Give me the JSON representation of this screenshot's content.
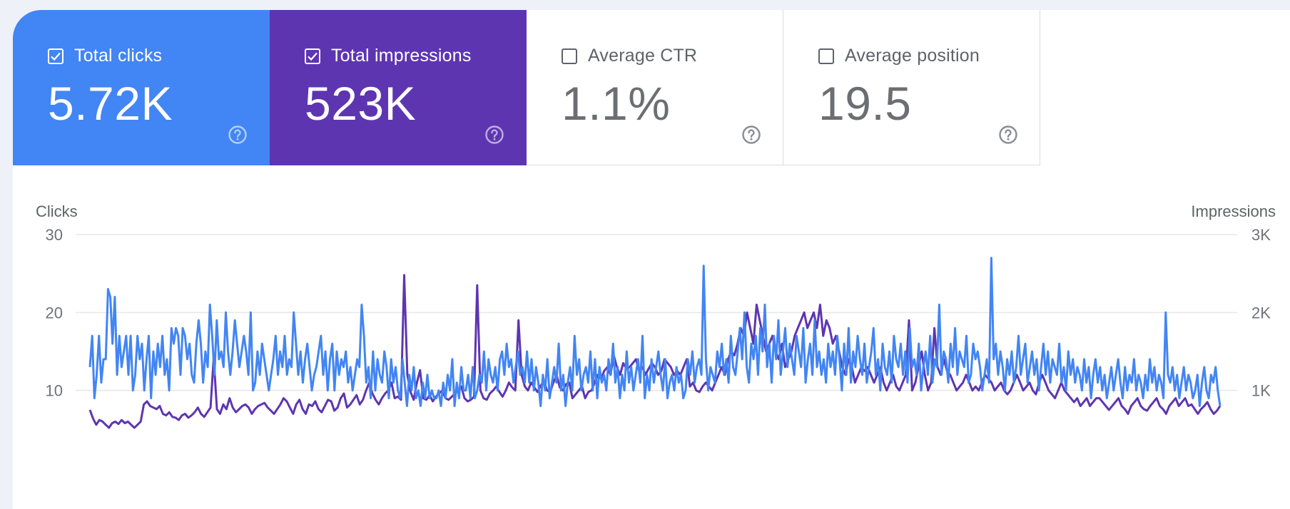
{
  "cards": [
    {
      "label": "Total clicks",
      "value": "5.72K",
      "checked": true,
      "color": "#4285f4"
    },
    {
      "label": "Total impressions",
      "value": "523K",
      "checked": true,
      "color": "#5e35b1"
    },
    {
      "label": "Average CTR",
      "value": "1.1%",
      "checked": false
    },
    {
      "label": "Average position",
      "value": "19.5",
      "checked": false
    }
  ],
  "chart_data": {
    "type": "line",
    "left_axis": {
      "title": "Clicks",
      "ticks": [
        "30",
        "20",
        "10"
      ],
      "ylim": [
        0,
        30
      ]
    },
    "right_axis": {
      "title": "Impressions",
      "ticks": [
        "3K",
        "2K",
        "1K"
      ],
      "ylim": [
        0,
        3000
      ]
    },
    "grid": true,
    "series": [
      {
        "axis": "left",
        "color": "#4285f4",
        "values": [
          13,
          17,
          9,
          12,
          17,
          11,
          14,
          14,
          23,
          22,
          16,
          22,
          12,
          17,
          13,
          15,
          17,
          12,
          17,
          10,
          12,
          17,
          14,
          16,
          10,
          14,
          17,
          9,
          15,
          12,
          16,
          13,
          17,
          12,
          14,
          10,
          18,
          16,
          18,
          17,
          12,
          18,
          17,
          14,
          16,
          12,
          11,
          16,
          19,
          16,
          11,
          15,
          13,
          21,
          17,
          12,
          19,
          14,
          15,
          13,
          20,
          15,
          12,
          15,
          19,
          16,
          13,
          15,
          17,
          15,
          12,
          20,
          10,
          11,
          15,
          12,
          16,
          14,
          12,
          10,
          12,
          14,
          17,
          12,
          15,
          13,
          17,
          12,
          14,
          13,
          20,
          16,
          12,
          15,
          11,
          14,
          16,
          13,
          10,
          12,
          13,
          15,
          17,
          12,
          15,
          10,
          14,
          16,
          10,
          15,
          12,
          14,
          13,
          15,
          11,
          13,
          10,
          12,
          14,
          13,
          21,
          17,
          11,
          13,
          9,
          15,
          10,
          14,
          12,
          11,
          15,
          13,
          9,
          14,
          11,
          13,
          10,
          9,
          14,
          11,
          8,
          12,
          10,
          13,
          9,
          10,
          8,
          11,
          9,
          12,
          9,
          10,
          9,
          9,
          10,
          8,
          11,
          9,
          12,
          10,
          14,
          8,
          11,
          9,
          13,
          10,
          10,
          12,
          9,
          13,
          9,
          10,
          12,
          11,
          15,
          10,
          14,
          12,
          11,
          13,
          10,
          14,
          15,
          12,
          16,
          13,
          14,
          11,
          13,
          15,
          12,
          13,
          11,
          15,
          11,
          14,
          10,
          13,
          11,
          8,
          12,
          10,
          14,
          9,
          11,
          13,
          11,
          16,
          10,
          12,
          8,
          11,
          13,
          10,
          17,
          12,
          14,
          10,
          12,
          13,
          11,
          15,
          10,
          14,
          9,
          13,
          11,
          12,
          10,
          14,
          12,
          16,
          11,
          13,
          9,
          12,
          10,
          15,
          11,
          13,
          10,
          12,
          14,
          11,
          17,
          9,
          12,
          10,
          14,
          11,
          13,
          15,
          12,
          10,
          14,
          9,
          11,
          12,
          10,
          13,
          11,
          12,
          9,
          10,
          14,
          12,
          15,
          11,
          13,
          14,
          12,
          26,
          14,
          10,
          13,
          12,
          11,
          15,
          13,
          16,
          12,
          14,
          11,
          17,
          13,
          12,
          15,
          18,
          14,
          20,
          13,
          11,
          16,
          14,
          17,
          12,
          18,
          15,
          21,
          13,
          16,
          11,
          17,
          14,
          19,
          12,
          15,
          18,
          13,
          16,
          14,
          12,
          17,
          15,
          13,
          18,
          11,
          14,
          16,
          12,
          19,
          13,
          15,
          12,
          14,
          11,
          16,
          13,
          15,
          12,
          17,
          14,
          10,
          16,
          12,
          18,
          11,
          15,
          13,
          17,
          14,
          12,
          16,
          11,
          13,
          15,
          18,
          12,
          14,
          10,
          16,
          13,
          12,
          15,
          11,
          17,
          14,
          13,
          16,
          12,
          15,
          11,
          18,
          13,
          14,
          12,
          16,
          10,
          13,
          15,
          12,
          17,
          11,
          14,
          13,
          21,
          12,
          15,
          14,
          11,
          16,
          13,
          18,
          12,
          15,
          14,
          13,
          17,
          11,
          12,
          16,
          14,
          15,
          13,
          10,
          12,
          14,
          11,
          27,
          14,
          16,
          12,
          15,
          13,
          10,
          14,
          12,
          15,
          11,
          13,
          17,
          12,
          14,
          16,
          11,
          13,
          15,
          12,
          14,
          10,
          13,
          16,
          12,
          15,
          11,
          14,
          13,
          12,
          16,
          11,
          13,
          10,
          15,
          12,
          14,
          11,
          13,
          12,
          10,
          14,
          11,
          13,
          9,
          12,
          14,
          11,
          13,
          10,
          12,
          9,
          11,
          13,
          10,
          12,
          14,
          11,
          9,
          13,
          10,
          12,
          11,
          14,
          10,
          12,
          11,
          9,
          12,
          10,
          14,
          11,
          13,
          10,
          12,
          11,
          9,
          20,
          12,
          11,
          13,
          10,
          12,
          9,
          11,
          13,
          10,
          12,
          11,
          9,
          10,
          12,
          8,
          11,
          13,
          10,
          9,
          12,
          11,
          13,
          10,
          8
        ]
      },
      {
        "axis": "right",
        "color": "#5e35b1",
        "values": [
          750,
          640,
          560,
          620,
          600,
          560,
          520,
          580,
          600,
          570,
          620,
          580,
          600,
          560,
          520,
          560,
          600,
          820,
          860,
          800,
          780,
          760,
          800,
          700,
          680,
          720,
          660,
          650,
          620,
          680,
          700,
          650,
          680,
          720,
          780,
          700,
          660,
          720,
          780,
          1420,
          760,
          700,
          820,
          760,
          900,
          780,
          720,
          760,
          800,
          820,
          780,
          700,
          760,
          800,
          820,
          840,
          780,
          740,
          700,
          760,
          820,
          900,
          860,
          780,
          700,
          820,
          880,
          760,
          700,
          820,
          800,
          860,
          760,
          720,
          800,
          880,
          860,
          740,
          780,
          900,
          960,
          780,
          820,
          880,
          940,
          820,
          880,
          1000,
          1100,
          960,
          880,
          820,
          900,
          960,
          1000,
          1100,
          900,
          920,
          880,
          2480,
          1200,
          980,
          880,
          1100,
          1260,
          900,
          880,
          940,
          860,
          920,
          960,
          1000,
          900,
          880,
          920,
          960,
          1000,
          1050,
          900,
          860,
          880,
          920,
          2350,
          1000,
          900,
          880,
          960,
          1000,
          1050,
          980,
          920,
          1000,
          1100,
          1040,
          1000,
          1900,
          1200,
          1050,
          1000,
          1100,
          1040,
          980,
          1060,
          1120,
          1000,
          980,
          1100,
          1200,
          1040,
          1000,
          1080,
          1100,
          900,
          950,
          1000,
          1050,
          900,
          980,
          1000,
          1100,
          1200,
          1150,
          1250,
          1300,
          1200,
          1450,
          1300,
          1200,
          1350,
          1280,
          1300,
          1350,
          1400,
          1250,
          1300,
          1200,
          1280,
          1350,
          1300,
          1200,
          1250,
          1400,
          1350,
          1300,
          1200,
          1250,
          1200,
          1300,
          1400,
          1050,
          1100,
          1000,
          980,
          1050,
          1100,
          1050,
          1000,
          1100,
          1200,
          1300,
          1200,
          1400,
          1500,
          1450,
          1600,
          1800,
          1700,
          2000,
          1800,
          1600,
          2100,
          1900,
          1700,
          1500,
          1600,
          1700,
          1500,
          1400,
          1600,
          1300,
          1400,
          1500,
          1700,
          1800,
          1900,
          2000,
          1800,
          1900,
          2000,
          1800,
          2100,
          1700,
          1900,
          1800,
          1600,
          1700,
          1500,
          1300,
          1200,
          1400,
          1300,
          1100,
          1200,
          1300,
          1250,
          1300,
          1200,
          1100,
          1200,
          1300,
          1100,
          1000,
          1100,
          1200,
          1050,
          1000,
          1100,
          1200,
          1900,
          1000,
          1100,
          1300,
          1500,
          1200,
          1000,
          1100,
          1800,
          1300,
          1200,
          1400,
          1250,
          1200,
          1100,
          1000,
          1050,
          1100,
          1200,
          1100,
          1000,
          1050,
          1000,
          1100,
          1200,
          1150,
          1100,
          1000,
          1050,
          1100,
          1000,
          950,
          1000,
          1100,
          1200,
          1100,
          1000,
          1050,
          1100,
          1000,
          950,
          1100,
          1200,
          1100,
          1000,
          950,
          900,
          1000,
          1100,
          1000,
          950,
          900,
          850,
          900,
          800,
          850,
          900,
          800,
          850,
          900,
          900,
          850,
          800,
          750,
          800,
          850,
          900,
          800,
          760,
          700,
          800,
          850,
          900,
          800,
          760,
          740,
          800,
          850,
          900,
          800,
          760,
          700,
          800,
          850,
          900,
          800,
          850,
          900,
          800,
          820,
          760,
          700,
          760,
          800,
          850,
          760,
          700,
          740,
          800
        ]
      }
    ]
  }
}
